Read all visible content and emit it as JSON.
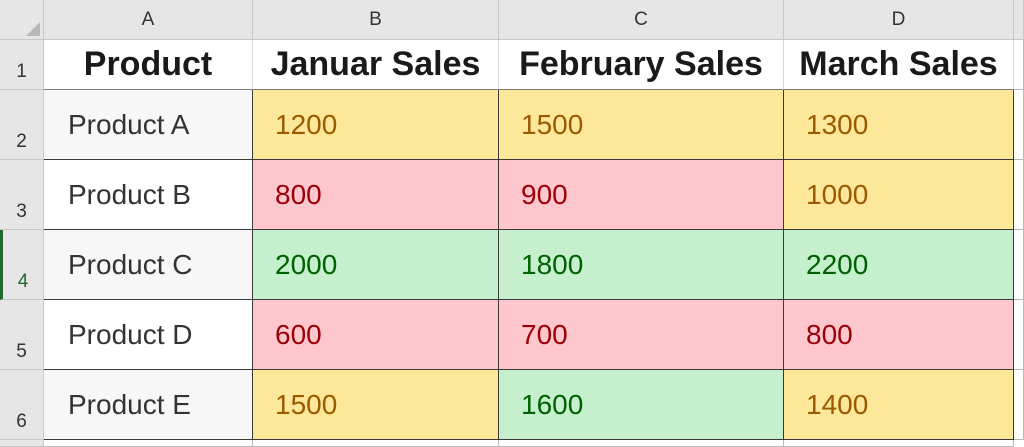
{
  "columns": [
    "A",
    "B",
    "C",
    "D"
  ],
  "rows": [
    "1",
    "2",
    "3",
    "4",
    "5",
    "6"
  ],
  "table": {
    "headers": [
      "Product",
      "Januar Sales",
      "February Sales",
      "March Sales"
    ],
    "rows": [
      {
        "product": "Product A",
        "values": [
          "1200",
          "1500",
          "1300"
        ],
        "colors": [
          "yellow",
          "yellow",
          "yellow"
        ]
      },
      {
        "product": "Product B",
        "values": [
          "800",
          "900",
          "1000"
        ],
        "colors": [
          "red",
          "red",
          "yellow"
        ]
      },
      {
        "product": "Product C",
        "values": [
          "2000",
          "1800",
          "2200"
        ],
        "colors": [
          "green",
          "green",
          "green"
        ]
      },
      {
        "product": "Product D",
        "values": [
          "600",
          "700",
          "800"
        ],
        "colors": [
          "red",
          "red",
          "red"
        ]
      },
      {
        "product": "Product E",
        "values": [
          "1500",
          "1600",
          "1400"
        ],
        "colors": [
          "yellow",
          "green",
          "yellow"
        ]
      }
    ]
  },
  "colors": {
    "yellow_fill": "#fde89a",
    "yellow_text": "#9a5a00",
    "red_fill": "#fec7ce",
    "red_text": "#9c0006",
    "green_fill": "#c6efce",
    "green_text": "#006100",
    "active_row_accent": "#1f6b2e"
  },
  "selected_row": "4"
}
